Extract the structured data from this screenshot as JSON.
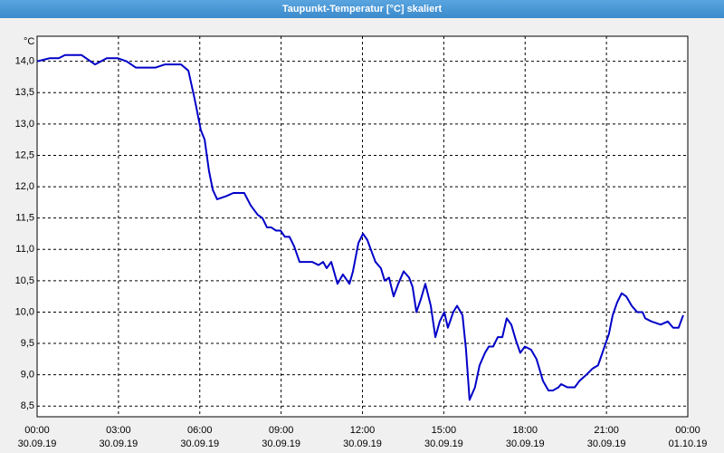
{
  "chart_data": {
    "type": "line",
    "title": "Taupunkt-Temperatur [°C] skaliert",
    "ylabel": "°C",
    "color": "#0000c8",
    "grid": true,
    "xlim": [
      0,
      24
    ],
    "ylim": [
      8.33,
      14.4
    ],
    "yticks": [
      {
        "value": 8.5,
        "label": "8,5"
      },
      {
        "value": 9.0,
        "label": "9,0"
      },
      {
        "value": 9.5,
        "label": "9,5"
      },
      {
        "value": 10.0,
        "label": "10,0"
      },
      {
        "value": 10.5,
        "label": "10,5"
      },
      {
        "value": 11.0,
        "label": "11,0"
      },
      {
        "value": 11.5,
        "label": "11,5"
      },
      {
        "value": 12.0,
        "label": "12,0"
      },
      {
        "value": 12.5,
        "label": "12,5"
      },
      {
        "value": 13.0,
        "label": "13,0"
      },
      {
        "value": 13.5,
        "label": "13,5"
      },
      {
        "value": 14.0,
        "label": "14,0"
      }
    ],
    "xticks": [
      {
        "value": 0,
        "label": "00:00"
      },
      {
        "value": 3,
        "label": "03:00"
      },
      {
        "value": 6,
        "label": "06:00"
      },
      {
        "value": 9,
        "label": "09:00"
      },
      {
        "value": 12,
        "label": "12:00"
      },
      {
        "value": 15,
        "label": "15:00"
      },
      {
        "value": 18,
        "label": "18:00"
      },
      {
        "value": 21,
        "label": "21:00"
      },
      {
        "value": 24,
        "label": "00:00"
      }
    ],
    "xtick_dates": [
      "30.09.19",
      "30.09.19",
      "30.09.19",
      "30.09.19",
      "30.09.19",
      "30.09.19",
      "30.09.19",
      "30.09.19",
      "01.10.19"
    ],
    "x": [
      0,
      0.47,
      0.8,
      1.03,
      1.64,
      2.14,
      2.57,
      2.97,
      3.3,
      3.64,
      4.04,
      4.37,
      4.71,
      4.97,
      5.31,
      5.58,
      5.81,
      6.04,
      6.18,
      6.34,
      6.48,
      6.64,
      6.98,
      7.24,
      7.64,
      7.88,
      8.14,
      8.31,
      8.48,
      8.64,
      8.81,
      8.98,
      9.14,
      9.31,
      9.48,
      9.68,
      9.91,
      10.15,
      10.38,
      10.55,
      10.68,
      10.85,
      11.08,
      11.28,
      11.52,
      11.65,
      11.85,
      12.02,
      12.18,
      12.35,
      12.48,
      12.68,
      12.82,
      12.98,
      13.15,
      13.32,
      13.52,
      13.72,
      13.85,
      13.99,
      14.15,
      14.32,
      14.52,
      14.69,
      14.85,
      15.02,
      15.15,
      15.35,
      15.49,
      15.69,
      15.82,
      15.95,
      16.15,
      16.32,
      16.52,
      16.66,
      16.82,
      16.99,
      17.16,
      17.32,
      17.49,
      17.66,
      17.82,
      17.99,
      18.22,
      18.42,
      18.66,
      18.86,
      19.03,
      19.23,
      19.33,
      19.56,
      19.83,
      20.0,
      20.26,
      20.49,
      20.69,
      20.89,
      21.09,
      21.23,
      21.39,
      21.56,
      21.73,
      21.93,
      22.13,
      22.33,
      22.43,
      22.66,
      23.0,
      23.26,
      23.46,
      23.66,
      23.83
    ],
    "values": [
      14.0,
      14.05,
      14.05,
      14.1,
      14.1,
      13.95,
      14.05,
      14.05,
      14.0,
      13.9,
      13.9,
      13.9,
      13.95,
      13.95,
      13.95,
      13.85,
      13.4,
      12.9,
      12.75,
      12.25,
      11.95,
      11.8,
      11.85,
      11.9,
      11.9,
      11.7,
      11.55,
      11.5,
      11.35,
      11.35,
      11.3,
      11.3,
      11.2,
      11.2,
      11.05,
      10.8,
      10.8,
      10.8,
      10.75,
      10.8,
      10.7,
      10.8,
      10.45,
      10.6,
      10.45,
      10.65,
      11.1,
      11.25,
      11.15,
      10.95,
      10.8,
      10.7,
      10.5,
      10.55,
      10.25,
      10.45,
      10.65,
      10.55,
      10.4,
      10.0,
      10.2,
      10.45,
      10.1,
      9.6,
      9.85,
      10.0,
      9.75,
      10.0,
      10.1,
      9.95,
      9.4,
      8.6,
      8.8,
      9.15,
      9.35,
      9.45,
      9.45,
      9.6,
      9.6,
      9.9,
      9.8,
      9.55,
      9.35,
      9.45,
      9.4,
      9.25,
      8.9,
      8.75,
      8.75,
      8.8,
      8.85,
      8.8,
      8.8,
      8.9,
      9.0,
      9.1,
      9.15,
      9.4,
      9.65,
      9.95,
      10.15,
      10.3,
      10.25,
      10.1,
      10.0,
      10.0,
      9.9,
      9.85,
      9.8,
      9.85,
      9.75,
      9.75,
      9.95
    ]
  }
}
